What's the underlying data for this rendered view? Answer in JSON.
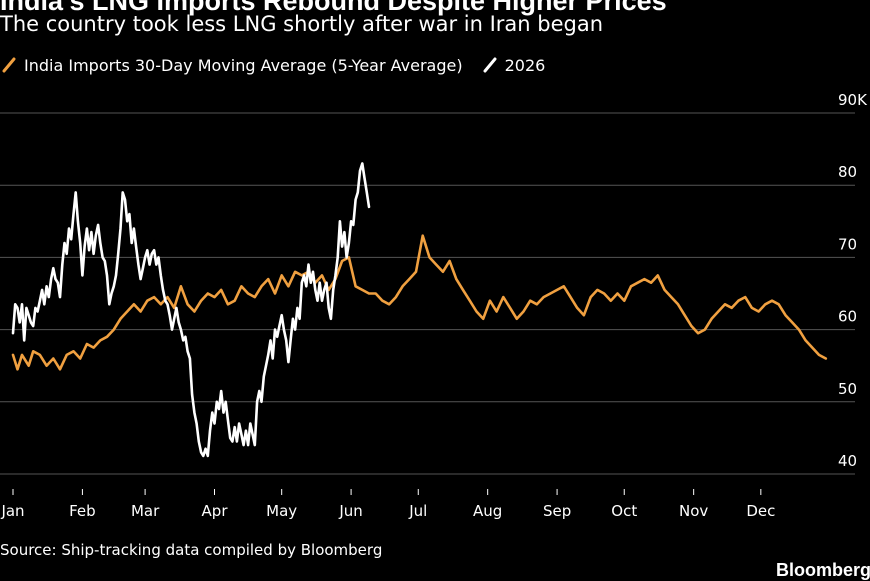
{
  "title": "India’s LNG Imports Rebound Despite Higher Prices",
  "subtitle": "The country took less LNG shortly after war in Iran began",
  "source": "Source: Ship-tracking data compiled by Bloomberg",
  "logo": "Bloomberg",
  "colors": {
    "background": "#000000",
    "avg_series": "#f0a040",
    "current_series": "#ffffff",
    "grid": "#555555"
  },
  "chart_data": {
    "type": "line",
    "x_unit": "day of year",
    "ylim": [
      40,
      90
    ],
    "y_ticks": [
      40,
      50,
      60,
      70,
      80,
      90
    ],
    "y_tick_labels": [
      "40",
      "50",
      "60",
      "70",
      "80",
      "90K"
    ],
    "x_ticks": [
      1,
      32,
      60,
      91,
      121,
      152,
      182,
      213,
      244,
      274,
      305,
      335
    ],
    "x_tick_labels": [
      "Jan",
      "Feb",
      "Mar",
      "Apr",
      "May",
      "Jun",
      "Jul",
      "Aug",
      "Sep",
      "Oct",
      "Nov",
      "Dec"
    ],
    "grid": true,
    "legend_position": "top-left",
    "series": [
      {
        "name": "India Imports 30-Day Moving Average (5-Year Average)",
        "color": "#f0a040",
        "x": [
          1,
          3,
          5,
          8,
          10,
          13,
          16,
          19,
          22,
          25,
          28,
          31,
          34,
          37,
          40,
          43,
          46,
          49,
          52,
          55,
          58,
          61,
          64,
          67,
          70,
          73,
          76,
          79,
          82,
          85,
          88,
          91,
          94,
          97,
          100,
          103,
          106,
          109,
          112,
          115,
          118,
          121,
          124,
          127,
          130,
          133,
          136,
          139,
          142,
          145,
          148,
          151,
          154,
          157,
          160,
          163,
          166,
          169,
          172,
          175,
          178,
          181,
          184,
          187,
          190,
          193,
          196,
          199,
          202,
          205,
          208,
          211,
          214,
          217,
          220,
          223,
          226,
          229,
          232,
          235,
          238,
          241,
          244,
          247,
          250,
          253,
          256,
          259,
          262,
          265,
          268,
          271,
          274,
          277,
          280,
          283,
          286,
          289,
          292,
          295,
          298,
          301,
          304,
          307,
          310,
          313,
          316,
          319,
          322,
          325,
          328,
          331,
          334,
          337,
          340,
          343,
          346,
          349,
          352,
          355,
          358,
          361,
          364
        ],
        "y": [
          56.5,
          54.5,
          56.5,
          55,
          57,
          56.5,
          55,
          56,
          54.5,
          56.5,
          57,
          56,
          58,
          57.5,
          58.5,
          59,
          60,
          61.5,
          62.5,
          63.5,
          62.5,
          64,
          64.5,
          63.5,
          64.5,
          63,
          66,
          63.5,
          62.5,
          64,
          65,
          64.5,
          65.5,
          63.5,
          64,
          66,
          65,
          64.5,
          66,
          67,
          65,
          67.5,
          66,
          68,
          67.5,
          68,
          66.5,
          67.5,
          65.5,
          67,
          69.5,
          70,
          66,
          65.5,
          65,
          65,
          64,
          63.5,
          64.5,
          66,
          67,
          68,
          73,
          70,
          69,
          68,
          69.5,
          67,
          65.5,
          64,
          62.5,
          61.5,
          64,
          62.5,
          64.5,
          63,
          61.5,
          62.5,
          64,
          63.5,
          64.5,
          65,
          65.5,
          66,
          64.5,
          63,
          62,
          64.5,
          65.5,
          65,
          64,
          65,
          64,
          66,
          66.5,
          67,
          66.5,
          67.5,
          65.5,
          64.5,
          63.5,
          62,
          60.5,
          59.5,
          60,
          61.5,
          62.5,
          63.5,
          63,
          64,
          64.5,
          63,
          62.5,
          63.5,
          64,
          63.5,
          62,
          61,
          60,
          58.5,
          57.5,
          56.5,
          56
        ]
      },
      {
        "name": "2026",
        "color": "#ffffff",
        "x": [
          1,
          2,
          3,
          4,
          5,
          6,
          7,
          8,
          9,
          10,
          11,
          12,
          13,
          14,
          15,
          16,
          17,
          18,
          19,
          20,
          21,
          22,
          23,
          24,
          25,
          26,
          27,
          28,
          29,
          30,
          31,
          32,
          33,
          34,
          35,
          36,
          37,
          38,
          39,
          40,
          41,
          42,
          43,
          44,
          45,
          46,
          47,
          48,
          49,
          50,
          51,
          52,
          53,
          54,
          55,
          56,
          57,
          58,
          59,
          60,
          61,
          62,
          63,
          64,
          65,
          66,
          67,
          68,
          69,
          70,
          71,
          72,
          73,
          74,
          75,
          76,
          77,
          78,
          79,
          80,
          81,
          82,
          83,
          84,
          85,
          86,
          87,
          88,
          89,
          90,
          91,
          92,
          93,
          94,
          95,
          96,
          97,
          98,
          99,
          100,
          101,
          102,
          103,
          104,
          105,
          106,
          107,
          108,
          109,
          110,
          111,
          112,
          113,
          114,
          115,
          116,
          117,
          118,
          119,
          120,
          121,
          122,
          123,
          124,
          125,
          126,
          127,
          128,
          129,
          130,
          131,
          132,
          133,
          134,
          135,
          136,
          137,
          138,
          139,
          140,
          141,
          142,
          143,
          144,
          145,
          146,
          147,
          148,
          149,
          150,
          151,
          152,
          153,
          154,
          155,
          156,
          157,
          158,
          159,
          160
        ],
        "y": [
          59.5,
          63.5,
          63,
          61,
          63.5,
          58.5,
          63,
          62,
          61,
          60.5,
          63,
          62.5,
          64,
          65.5,
          63.5,
          66,
          64.5,
          67,
          68.5,
          67,
          66.5,
          64.5,
          69,
          72,
          70.5,
          74,
          72.5,
          76,
          79,
          75,
          72,
          67.5,
          71.5,
          74,
          71,
          73.5,
          70.5,
          73,
          74.5,
          72,
          70,
          69.5,
          67.5,
          63.5,
          65,
          66,
          67.5,
          70.5,
          74,
          79,
          78,
          75,
          76,
          72,
          74,
          71.5,
          69,
          67,
          68.5,
          70,
          71,
          69,
          70.5,
          71,
          69,
          70,
          67.5,
          65.5,
          64,
          63.5,
          62,
          60,
          61.5,
          63,
          61,
          60,
          58.5,
          59,
          57,
          56,
          51,
          48.5,
          47,
          44.5,
          43,
          42.5,
          43.5,
          42.5,
          46,
          48.5,
          47,
          50,
          49,
          51.5,
          48.5,
          50,
          47.5,
          45,
          44.5,
          46.5,
          44.5,
          47,
          45.5,
          44,
          46,
          44,
          47,
          45.5,
          44,
          50,
          51.5,
          50,
          53.5,
          55,
          56.5,
          58.5,
          56,
          60,
          59,
          60.5,
          62,
          60,
          58.5,
          55.5,
          58.5,
          61.5,
          60,
          63,
          61.5,
          66.5,
          67.5,
          66,
          69,
          66.5,
          68,
          65.5,
          64,
          66.5,
          64,
          65.5,
          66.5,
          63,
          61.5,
          65.5,
          67.5,
          70,
          75,
          71.5,
          73.5,
          70,
          72,
          75,
          74.5,
          78,
          79,
          82,
          83,
          81,
          79,
          77
        ]
      }
    ]
  }
}
